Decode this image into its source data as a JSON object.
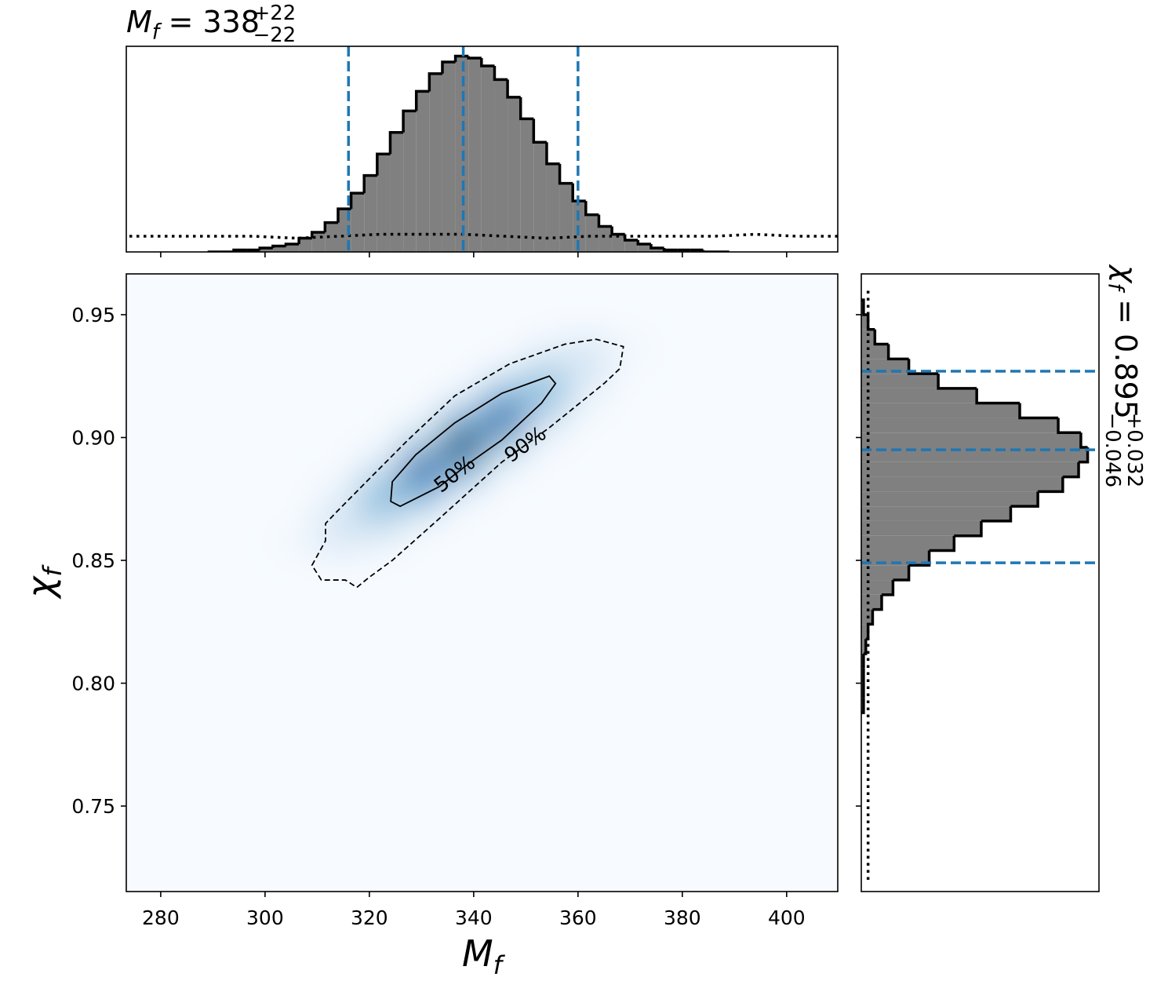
{
  "chart_data": [
    {
      "type": "histogram",
      "title": {
        "symbol": "M",
        "subscript": "f",
        "equals": "= 338",
        "sup": "+22",
        "sub": "−22"
      },
      "bins": [
        289,
        291.5,
        294,
        296.5,
        299,
        301.5,
        304,
        306.5,
        309,
        311.5,
        314,
        316.5,
        319,
        321.5,
        324,
        326.5,
        329,
        331.5,
        334,
        336.5,
        339,
        341.5,
        344,
        346.5,
        349,
        351.5,
        354,
        356.5,
        359,
        361.5,
        364,
        366.5,
        369,
        371.5,
        374,
        376.5,
        379,
        381.5,
        384,
        386.5,
        389
      ],
      "values": [
        0.0,
        0.0,
        0.01,
        0.01,
        0.02,
        0.03,
        0.04,
        0.07,
        0.1,
        0.15,
        0.22,
        0.3,
        0.39,
        0.5,
        0.61,
        0.72,
        0.82,
        0.91,
        0.97,
        1.0,
        0.99,
        0.95,
        0.88,
        0.79,
        0.68,
        0.56,
        0.45,
        0.35,
        0.26,
        0.19,
        0.13,
        0.09,
        0.06,
        0.04,
        0.02,
        0.01,
        0.01,
        0.01,
        0.0,
        0.0
      ],
      "color": "#808080",
      "edgecolor": "#000000",
      "xlim": [
        273.4,
        409.8
      ],
      "xticks": [
        280,
        300,
        320,
        340,
        360,
        380,
        400
      ],
      "ylim": [
        0,
        1.05
      ],
      "quantiles": [
        316,
        338,
        360
      ],
      "quantile_color": "#1f77b4",
      "prior": {
        "x": [
          274,
          282,
          290,
          298,
          306,
          314,
          322,
          330,
          338,
          346,
          354,
          362,
          370,
          378,
          386,
          394,
          402,
          410
        ],
        "values": [
          0.08,
          0.08,
          0.08,
          0.08,
          0.07,
          0.08,
          0.09,
          0.09,
          0.09,
          0.08,
          0.07,
          0.08,
          0.08,
          0.08,
          0.08,
          0.09,
          0.08,
          0.08
        ]
      }
    },
    {
      "type": "heatmap",
      "xlabel": {
        "symbol": "M",
        "subscript": "f"
      },
      "ylabel": {
        "symbol": "χ",
        "subscript": "f"
      },
      "xlim": [
        273.4,
        409.8
      ],
      "xticks": [
        280,
        300,
        320,
        340,
        360,
        380,
        400
      ],
      "ylim": [
        0.7152,
        0.9666
      ],
      "yticks": [
        0.75,
        {
          "value": 0.8,
          "label": "0.80"
        },
        0.85,
        {
          "value": 0.9,
          "label": "0.90"
        },
        0.95
      ],
      "x": [
        306,
        314,
        322,
        330,
        338,
        346,
        354,
        362,
        370
      ],
      "y": [
        0.857,
        0.867,
        0.877,
        0.887,
        0.897,
        0.907,
        0.917,
        0.927,
        0.937
      ],
      "values": [
        [
          0.04,
          0.14,
          0.06,
          0,
          0,
          0,
          0,
          0,
          0
        ],
        [
          0.01,
          0.17,
          0.31,
          0.08,
          0,
          0,
          0,
          0,
          0
        ],
        [
          0,
          0.06,
          0.45,
          0.5,
          0.07,
          0,
          0,
          0,
          0
        ],
        [
          0,
          0.01,
          0.18,
          0.82,
          0.52,
          0.04,
          0,
          0,
          0
        ],
        [
          0,
          0,
          0.02,
          0.36,
          1,
          0.36,
          0.02,
          0,
          0
        ],
        [
          0,
          0,
          0,
          0.04,
          0.52,
          0.82,
          0.18,
          0.01,
          0
        ],
        [
          0,
          0,
          0,
          0,
          0.07,
          0.5,
          0.45,
          0.06,
          0
        ],
        [
          0,
          0,
          0,
          0,
          0,
          0.08,
          0.31,
          0.17,
          0.01
        ],
        [
          0,
          0,
          0,
          0,
          0,
          0,
          0.06,
          0.14,
          0.04
        ]
      ],
      "colormap": [
        "#f7fbff",
        "#deebf7",
        "#c6dbef",
        "#9ecae1",
        "#6baed6",
        "#4292c6",
        "#2171b5",
        "#08519c",
        "#08306b"
      ],
      "contours": [
        {
          "label": "50%",
          "style": "solid",
          "x": [
            324.1,
            324.4,
            328.9,
            336.4,
            345.4,
            354.5,
            355.7,
            353.0,
            345.4,
            339.4,
            333.4,
            325.9
          ],
          "y": [
            0.874,
            0.882,
            0.893,
            0.906,
            0.918,
            0.925,
            0.922,
            0.914,
            0.899,
            0.89,
            0.88,
            0.872
          ]
        },
        {
          "label": "90%",
          "style": "dashed",
          "x": [
            309.0,
            311.6,
            311.6,
            313.85,
            319.9,
            327.4,
            336.4,
            346.9,
            357.5,
            363.5,
            368.7,
            368.0,
            365.0,
            354.5,
            345.4,
            333.4,
            324.4,
            319.9,
            317.6,
            315.4,
            310.8
          ],
          "y": [
            0.848,
            0.858,
            0.865,
            0.87,
            0.883,
            0.899,
            0.917,
            0.93,
            0.938,
            0.94,
            0.937,
            0.928,
            0.922,
            0.904,
            0.89,
            0.867,
            0.85,
            0.843,
            0.839,
            0.842,
            0.842
          ]
        }
      ]
    },
    {
      "type": "histogram",
      "orientation": "horizontal",
      "title": {
        "symbol": "χ",
        "subscript": "f",
        "equals": "= 0.895",
        "sup": "+0.032",
        "sub": "−0.046"
      },
      "bins": [
        0.788,
        0.794,
        0.8,
        0.806,
        0.812,
        0.818,
        0.824,
        0.83,
        0.836,
        0.842,
        0.848,
        0.854,
        0.86,
        0.866,
        0.872,
        0.878,
        0.884,
        0.89,
        0.896,
        0.902,
        0.908,
        0.914,
        0.92,
        0.926,
        0.932,
        0.938,
        0.944,
        0.95,
        0.956
      ],
      "values": [
        0.01,
        0.01,
        0.01,
        0.01,
        0.02,
        0.03,
        0.05,
        0.09,
        0.14,
        0.21,
        0.3,
        0.41,
        0.53,
        0.66,
        0.78,
        0.89,
        0.96,
        1.0,
        0.97,
        0.87,
        0.7,
        0.51,
        0.34,
        0.21,
        0.12,
        0.06,
        0.03,
        0.01
      ],
      "color": "#808080",
      "edgecolor": "#000000",
      "xlim": [
        0,
        1.05
      ],
      "ylim": [
        0.7152,
        0.9666
      ],
      "yticks": [
        0.75,
        {
          "value": 0.8,
          "label": "0.80"
        },
        0.85,
        {
          "value": 0.9,
          "label": "0.90"
        },
        0.95
      ],
      "quantiles": [
        0.849,
        0.895,
        0.927
      ],
      "quantile_color": "#1f77b4",
      "prior": {
        "y": [
          0.72,
          0.76,
          0.8,
          0.84,
          0.88,
          0.92,
          0.96
        ],
        "values": [
          0.03,
          0.03,
          0.03,
          0.03,
          0.03,
          0.03,
          0.03
        ]
      }
    }
  ]
}
